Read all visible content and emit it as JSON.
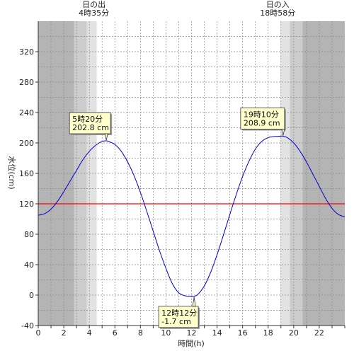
{
  "chart_data": {
    "type": "line",
    "xlabel": "時間(h)",
    "ylabel": "水位(cm)",
    "xlim": [
      0,
      24
    ],
    "ylim": [
      -40,
      360
    ],
    "xticks": [
      0,
      2,
      4,
      6,
      8,
      10,
      12,
      14,
      16,
      18,
      20,
      22
    ],
    "yticks": [
      -40,
      0,
      40,
      80,
      120,
      160,
      200,
      240,
      280,
      320
    ],
    "grid": true,
    "reference_line": {
      "value": 120,
      "color": "#ff0000"
    },
    "series": [
      {
        "color": "#0000cc",
        "x": [
          0,
          0.5,
          1,
          1.5,
          2,
          2.5,
          3,
          3.5,
          4,
          4.5,
          5,
          5.33,
          5.5,
          6,
          6.5,
          7,
          7.5,
          8,
          8.5,
          9,
          9.5,
          10,
          10.5,
          11,
          11.5,
          12,
          12.2,
          12.5,
          13,
          13.5,
          14,
          14.5,
          15,
          15.5,
          16,
          16.5,
          17,
          17.5,
          18,
          18.5,
          19,
          19.17,
          19.5,
          20,
          20.5,
          21,
          21.5,
          22,
          22.5,
          23,
          23.5,
          24
        ],
        "y": [
          105,
          107,
          113,
          123,
          136,
          150,
          164,
          178,
          189,
          197,
          202,
          202.8,
          202,
          198,
          189,
          175,
          157,
          135,
          110,
          84,
          58,
          35,
          15,
          3,
          -1,
          -1.5,
          -1.7,
          1,
          12,
          30,
          53,
          79,
          106,
          132,
          156,
          176,
          192,
          202,
          207,
          208.5,
          208.9,
          208.9,
          207,
          200,
          189,
          175,
          159,
          143,
          127,
          114,
          106,
          103
        ]
      }
    ],
    "day_shading": {
      "night_color": "#b4b4b4",
      "twilight_color": "#cccccc",
      "dawn_color": "#e2e2e2",
      "night_end": 2.8,
      "twilight_end": 3.8,
      "sunrise": 4.58,
      "sunset": 18.97,
      "dusk_end": 19.7,
      "twilight2_end": 20.7
    },
    "annotations": [
      {
        "line1": "5時20分",
        "line2": "202.8 cm",
        "x": 5.33,
        "y": 202.8
      },
      {
        "line1": "19時10分",
        "line2": "208.9 cm",
        "x": 19.17,
        "y": 208.9
      },
      {
        "line1": "12時12分",
        "line2": "-1.7 cm",
        "x": 12.2,
        "y": -1.7
      }
    ],
    "sun_labels": [
      {
        "title": "日の出",
        "time": "4時35分",
        "x": 4.58
      },
      {
        "title": "日の入",
        "time": "18時58分",
        "x": 18.97
      }
    ]
  }
}
